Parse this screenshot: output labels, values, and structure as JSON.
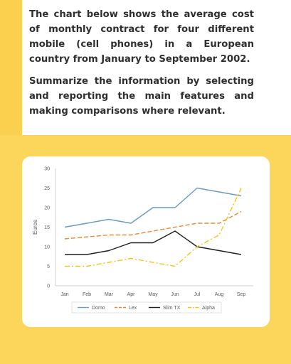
{
  "prompt": {
    "paragraph1": "The chart below shows the average cost of monthly contract for four different mobile (cell phones) in a European country from January to September 2002.",
    "paragraph2": "Summarize the information by selecting and reporting the main features and making comparisons where relevant."
  },
  "colors": {
    "accent_yellow": "#fbd04f",
    "band_yellow": "#fcd65a"
  },
  "chart_data": {
    "type": "line",
    "title": "",
    "xlabel": "",
    "ylabel": "Euros",
    "ylim": [
      0,
      30
    ],
    "yticks": [
      0,
      5,
      10,
      15,
      20,
      25,
      30
    ],
    "grid": false,
    "legend_position": "bottom",
    "categories": [
      "Jan",
      "Feb",
      "Mar",
      "Apr",
      "May",
      "Jun",
      "Jul",
      "Aug",
      "Sep"
    ],
    "series": [
      {
        "name": "Domo",
        "color": "#6c9bbf",
        "style": "solid",
        "values": [
          15,
          16,
          17,
          16,
          20,
          20,
          25,
          24,
          23
        ]
      },
      {
        "name": "Lex",
        "color": "#e8883a",
        "style": "dashed",
        "values": [
          12,
          12.5,
          13,
          13,
          14,
          15,
          16,
          16,
          19
        ]
      },
      {
        "name": "Slim TX",
        "color": "#1f1f1f",
        "style": "solid",
        "values": [
          8,
          8,
          9,
          11,
          11,
          14,
          10,
          9,
          8
        ]
      },
      {
        "name": "Alpha",
        "color": "#f2c422",
        "style": "dashdot",
        "values": [
          5,
          5,
          6,
          7,
          6,
          5,
          10,
          13,
          25
        ]
      }
    ]
  }
}
